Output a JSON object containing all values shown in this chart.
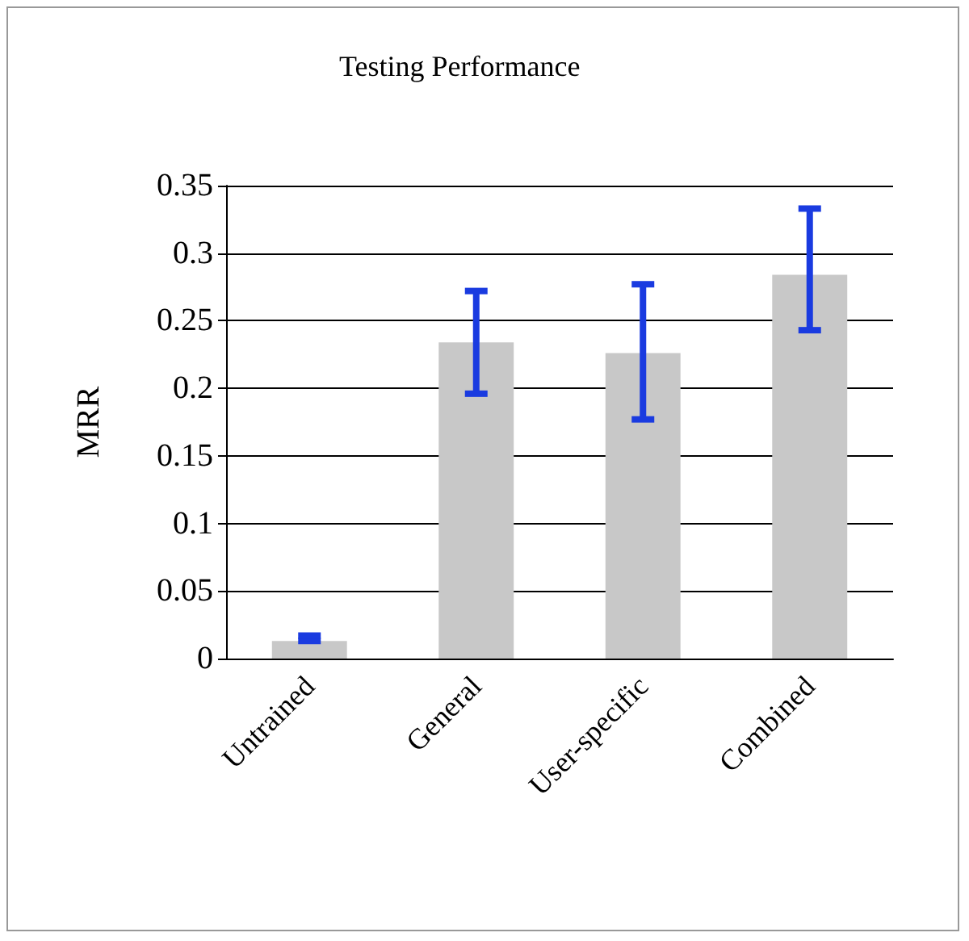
{
  "chart_data": {
    "type": "bar",
    "title": "Testing Performance",
    "ylabel": "MRR",
    "categories": [
      "Untrained",
      "General",
      "User-specific",
      "Combined"
    ],
    "series": [
      {
        "color": "#c8c8c8",
        "values": [
          0.013,
          0.234,
          0.226,
          0.284
        ],
        "errors": [
          [
            0.013,
            0.017
          ],
          [
            0.196,
            0.272
          ],
          [
            0.177,
            0.277
          ],
          [
            0.243,
            0.333
          ]
        ]
      }
    ],
    "ylim": [
      0,
      0.35
    ],
    "yticks": [
      0,
      0.05,
      0.1,
      0.15,
      0.2,
      0.25,
      0.3,
      0.35
    ],
    "grid": "y"
  }
}
